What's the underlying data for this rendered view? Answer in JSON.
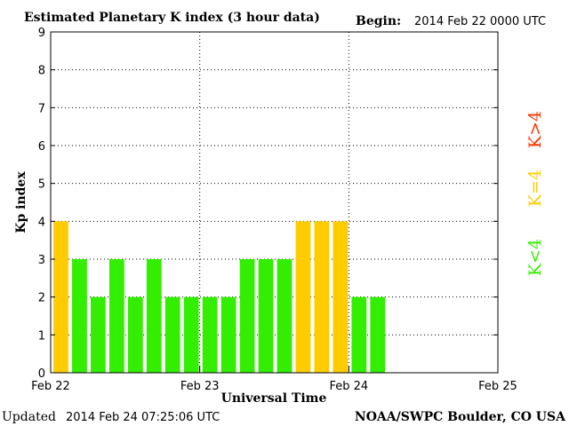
{
  "title": "Estimated Planetary K index (3 hour data)",
  "begin": {
    "label": "Begin:",
    "value": "2014 Feb 22 0000 UTC"
  },
  "footer": {
    "updated_label": "Updated",
    "updated_value": "2014 Feb 24 07:25:06 UTC",
    "source": "NOAA/SWPC Boulder, CO USA"
  },
  "legend": [
    {
      "text": "K<4",
      "color": "#33ee00"
    },
    {
      "text": "K=4",
      "color": "#ffcc00"
    },
    {
      "text": "K>4",
      "color": "#ff3300"
    }
  ],
  "colors": {
    "below4": "#33ee00",
    "equal4": "#ffcc00",
    "above4": "#ff3300",
    "grid": "#000000"
  },
  "chart_data": {
    "type": "bar",
    "title": "Estimated Planetary K index (3 hour data)",
    "xlabel": "Universal Time",
    "ylabel": "Kp index",
    "ylim": [
      0,
      9
    ],
    "yticks": [
      "0",
      "1",
      "2",
      "3",
      "4",
      "5",
      "6",
      "7",
      "8",
      "9"
    ],
    "xticks": [
      "Feb 22",
      "Feb 23",
      "Feb 24",
      "Feb 25"
    ],
    "interval_hours": 3,
    "start": "2014 Feb 22 0000 UTC",
    "values": [
      4,
      3,
      2,
      3,
      2,
      3,
      2,
      2,
      2,
      2,
      3,
      3,
      3,
      4,
      4,
      4,
      2,
      2
    ],
    "grid": true,
    "legend_position": "right"
  }
}
